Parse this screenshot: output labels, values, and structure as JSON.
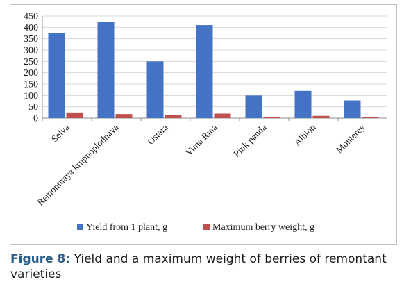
{
  "chart_data": {
    "type": "bar",
    "categories": [
      "Selva",
      "Remontnaya krupnoplodnaya",
      "Ostara",
      "Vima Rina",
      "Pink panda",
      "Albion",
      "Monterey"
    ],
    "series": [
      {
        "name": "Yield from 1 plant, g",
        "values": [
          375,
          425,
          250,
          410,
          100,
          120,
          78
        ],
        "color": "#4472c4"
      },
      {
        "name": "Maximum berry weight, g",
        "values": [
          25,
          18,
          15,
          20,
          6,
          10,
          5
        ],
        "color": "#c0504d"
      }
    ],
    "ylim": [
      0,
      450
    ],
    "yticks": [
      "0",
      "50",
      "100",
      "150",
      "200",
      "250",
      "300",
      "350",
      "400",
      "450"
    ],
    "grid": true,
    "legend_position": "bottom"
  },
  "caption": {
    "label": "Figure 8:",
    "text": "Yield and a maximum weight of berries of remontant varieties"
  }
}
